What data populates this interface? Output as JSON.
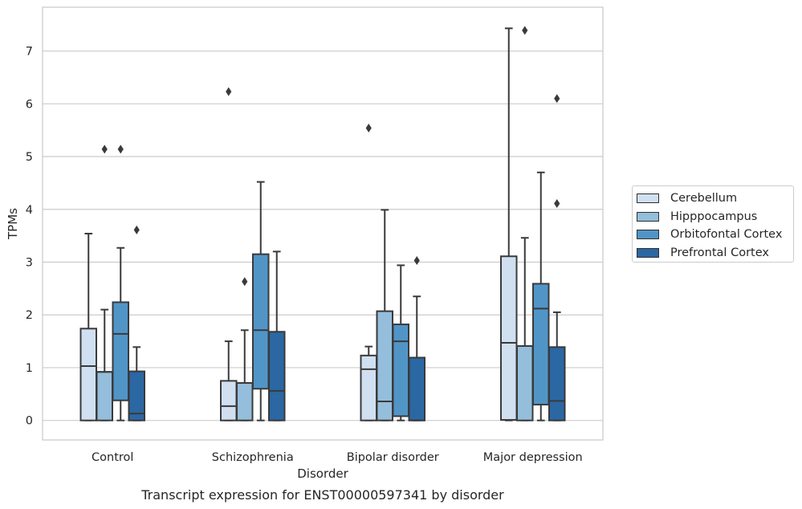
{
  "chart_data": {
    "type": "box",
    "title": "Transcript expression for ENST00000597341 by disorder",
    "xlabel": "Disorder",
    "ylabel": "TPMs",
    "ylim": [
      -0.37,
      7.83
    ],
    "yticks": [
      0,
      1,
      2,
      3,
      4,
      5,
      6,
      7
    ],
    "ytick_labels": [
      "0",
      "1",
      "2",
      "3",
      "4",
      "5",
      "6",
      "7"
    ],
    "grid": "horizontal",
    "legend_position": "outside-right",
    "categories": [
      "Control",
      "Schizophrenia",
      "Bipolar disorder",
      "Major depression"
    ],
    "series": [
      {
        "name": "Cerebellum",
        "color": "#d0e0f1",
        "boxes": [
          {
            "whislo": 0.0,
            "q1": 0.0,
            "med": 1.03,
            "q3": 1.74,
            "whishi": 3.54,
            "fliers": []
          },
          {
            "whislo": 0.0,
            "q1": 0.0,
            "med": 0.27,
            "q3": 0.75,
            "whishi": 1.5,
            "fliers": [
              6.23
            ]
          },
          {
            "whislo": 0.0,
            "q1": 0.0,
            "med": 0.97,
            "q3": 1.23,
            "whishi": 1.4,
            "fliers": [
              5.54
            ]
          },
          {
            "whislo": 0.0,
            "q1": 0.01,
            "med": 1.47,
            "q3": 3.11,
            "whishi": 7.43,
            "fliers": []
          }
        ]
      },
      {
        "name": "Hipppocampus",
        "color": "#94bedb",
        "boxes": [
          {
            "whislo": 0.0,
            "q1": 0.0,
            "med": 0.92,
            "q3": 0.92,
            "whishi": 2.1,
            "fliers": [
              5.14
            ]
          },
          {
            "whislo": 0.0,
            "q1": 0.0,
            "med": 0.71,
            "q3": 0.71,
            "whishi": 1.71,
            "fliers": [
              2.63
            ]
          },
          {
            "whislo": 0.0,
            "q1": 0.0,
            "med": 0.36,
            "q3": 2.07,
            "whishi": 3.99,
            "fliers": []
          },
          {
            "whislo": 0.0,
            "q1": 0.0,
            "med": 1.41,
            "q3": 1.41,
            "whishi": 3.46,
            "fliers": [
              7.39
            ]
          }
        ]
      },
      {
        "name": "Orbitofontal Cortex",
        "color": "#5195c7",
        "boxes": [
          {
            "whislo": 0.0,
            "q1": 0.38,
            "med": 1.64,
            "q3": 2.24,
            "whishi": 3.27,
            "fliers": [
              5.14
            ]
          },
          {
            "whislo": 0.0,
            "q1": 0.6,
            "med": 1.71,
            "q3": 3.15,
            "whishi": 4.52,
            "fliers": []
          },
          {
            "whislo": 0.0,
            "q1": 0.08,
            "med": 1.5,
            "q3": 1.82,
            "whishi": 2.94,
            "fliers": []
          },
          {
            "whislo": 0.0,
            "q1": 0.3,
            "med": 2.12,
            "q3": 2.59,
            "whishi": 4.7,
            "fliers": []
          }
        ]
      },
      {
        "name": "Prefrontal Cortex",
        "color": "#2b67a3",
        "boxes": [
          {
            "whislo": 0.0,
            "q1": 0.0,
            "med": 0.13,
            "q3": 0.93,
            "whishi": 1.39,
            "fliers": [
              3.61
            ]
          },
          {
            "whislo": 0.0,
            "q1": 0.0,
            "med": 0.56,
            "q3": 1.68,
            "whishi": 3.2,
            "fliers": []
          },
          {
            "whislo": 0.0,
            "q1": 0.0,
            "med": 0.0,
            "q3": 1.19,
            "whishi": 2.35,
            "fliers": [
              3.03
            ]
          },
          {
            "whislo": 0.0,
            "q1": 0.0,
            "med": 0.37,
            "q3": 1.39,
            "whishi": 2.05,
            "fliers": [
              4.11,
              6.1
            ]
          }
        ]
      }
    ]
  }
}
